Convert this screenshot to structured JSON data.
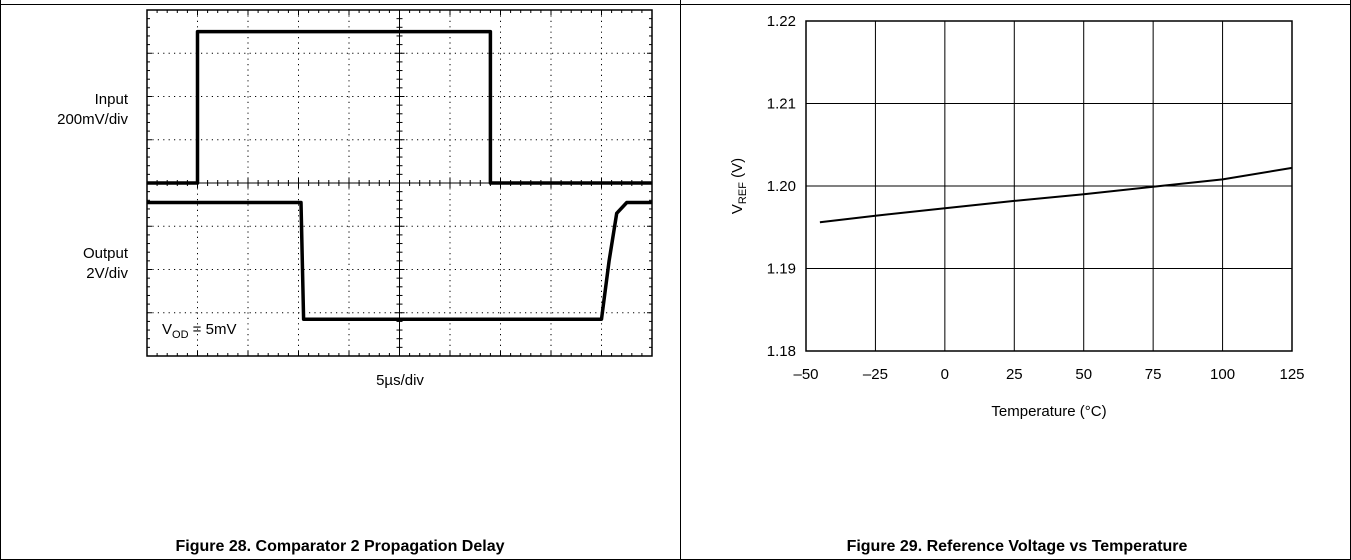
{
  "panels": [
    {
      "caption": "Figure 28. Comparator 2 Propagation Delay",
      "input_label": "Input",
      "input_scale": "200mV/div",
      "output_label": "Output",
      "output_scale": "2V/div",
      "overdrive_symbol": "V",
      "overdrive_subscript": "OD",
      "overdrive_value": " = 5mV",
      "timebase": "5µs/div"
    },
    {
      "caption": "Figure 29. Reference Voltage vs Temperature"
    }
  ],
  "chart_data": [
    {
      "type": "line",
      "subtype": "oscilloscope",
      "x_divisions": 10,
      "y_divisions": 8,
      "grid": "dotted",
      "series": [
        {
          "x": [
            0,
            1,
            1,
            6.8,
            6.8,
            10
          ],
          "y": [
            4,
            4,
            7.5,
            7.5,
            4,
            4
          ]
        },
        {
          "x": [
            0,
            3.05,
            3.1,
            9.0,
            9.15,
            9.3,
            9.5,
            10
          ],
          "y": [
            3.55,
            3.55,
            0.85,
            0.85,
            2.2,
            3.3,
            3.55,
            3.55
          ]
        }
      ]
    },
    {
      "type": "line",
      "xlabel": "Temperature (°C)",
      "ylabel_main": "V",
      "ylabel_sub": "REF",
      "ylabel_unit": " (V)",
      "xlim": [
        -50,
        125
      ],
      "ylim": [
        1.18,
        1.22
      ],
      "xticks": [
        -50,
        -25,
        0,
        25,
        50,
        75,
        100,
        125
      ],
      "xtick_labels": [
        "–50",
        "–25",
        "0",
        "25",
        "50",
        "75",
        "100",
        "125"
      ],
      "yticks": [
        1.18,
        1.19,
        1.2,
        1.21,
        1.22
      ],
      "ytick_labels": [
        "1.18",
        "1.19",
        "1.20",
        "1.21",
        "1.22"
      ],
      "grid": true,
      "series": [
        {
          "x": [
            -45,
            -25,
            0,
            25,
            50,
            75,
            100,
            125
          ],
          "y": [
            1.1956,
            1.1964,
            1.1973,
            1.1982,
            1.199,
            1.1999,
            1.2008,
            1.2022
          ]
        }
      ]
    }
  ]
}
